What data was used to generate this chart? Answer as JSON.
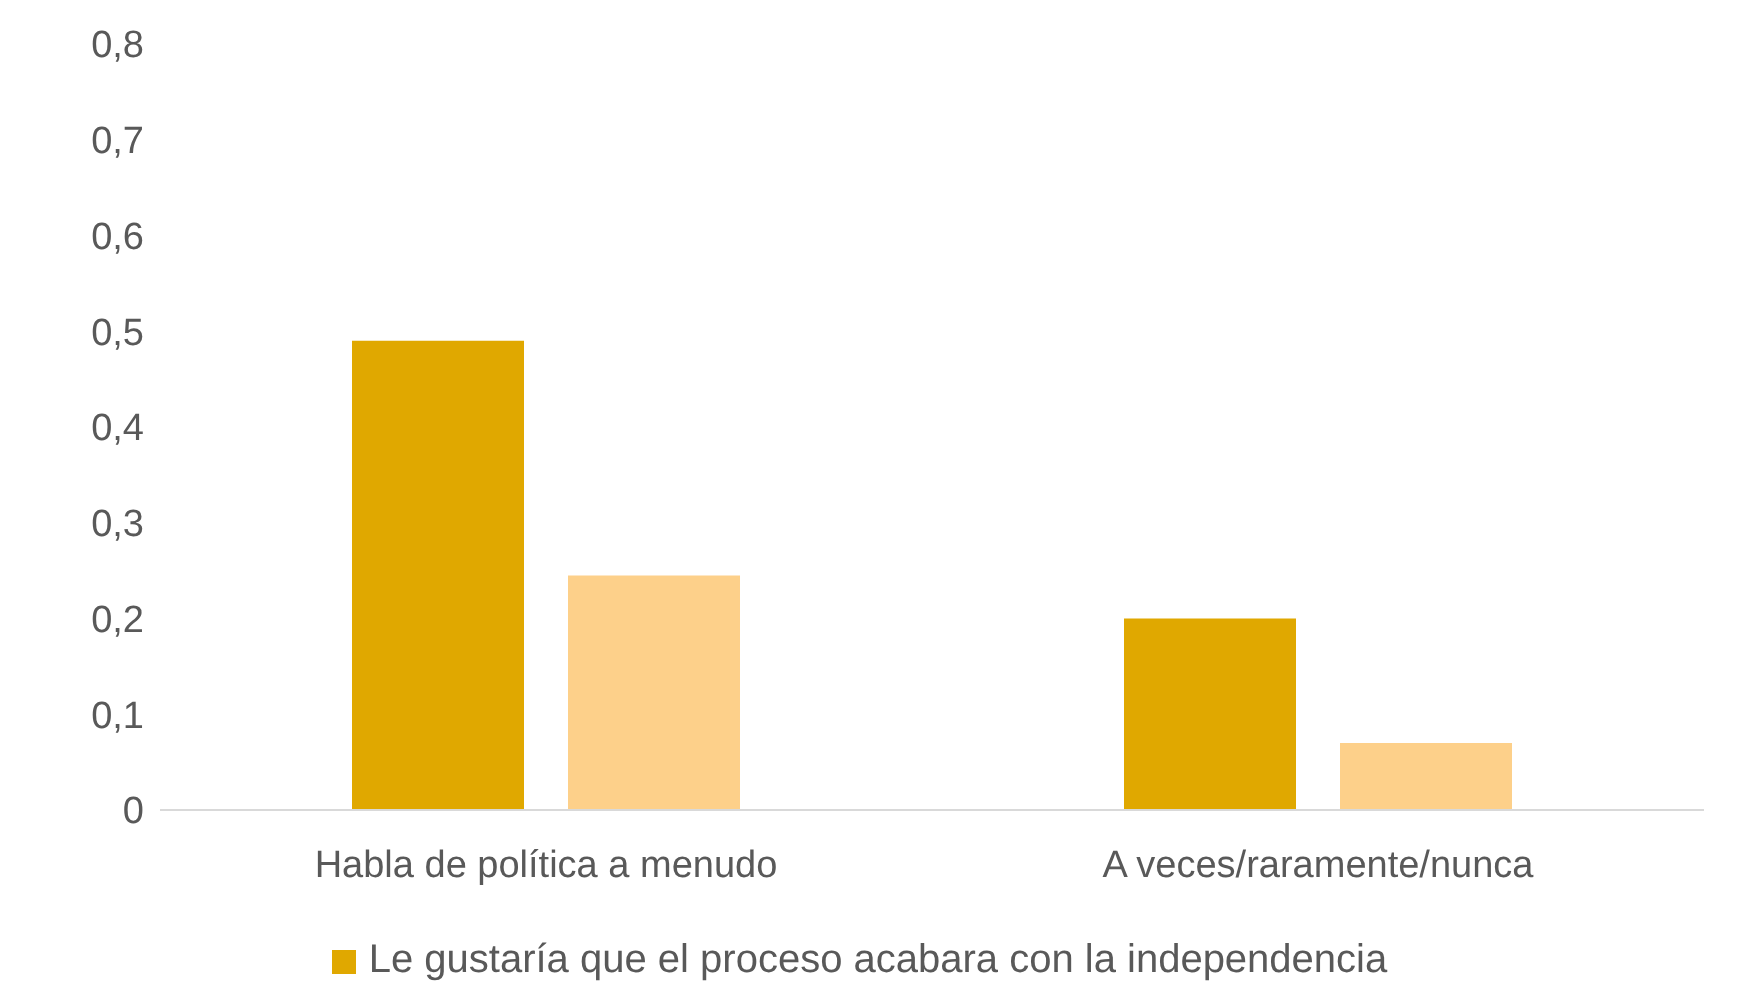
{
  "chart_data": {
    "type": "bar",
    "categories": [
      "Habla de política a menudo",
      "A veces/raramente/nunca"
    ],
    "series": [
      {
        "name": "Le gustaría que el proceso acabara con la independencia",
        "color": "#e0a800",
        "values": [
          0.49,
          0.2
        ]
      },
      {
        "color": "#fdd08a",
        "values": [
          0.245,
          0.07
        ]
      }
    ],
    "ylim": [
      0,
      0.8
    ],
    "yticks": [
      {
        "value": 0,
        "label": "0"
      },
      {
        "value": 0.1,
        "label": "0,1"
      },
      {
        "value": 0.2,
        "label": "0,2"
      },
      {
        "value": 0.3,
        "label": "0,3"
      },
      {
        "value": 0.4,
        "label": "0,4"
      },
      {
        "value": 0.5,
        "label": "0,5"
      },
      {
        "value": 0.6,
        "label": "0,6"
      },
      {
        "value": 0.7,
        "label": "0,7"
      },
      {
        "value": 0.8,
        "label": "0,8"
      }
    ],
    "grid": false,
    "legend": "bottom"
  }
}
